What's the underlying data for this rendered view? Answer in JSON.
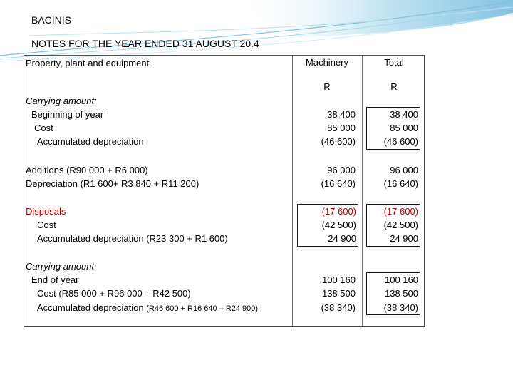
{
  "header": {
    "company": "BACINIS",
    "title": "NOTES FOR THE YEAR ENDED 31 AUGUST 20.4"
  },
  "table": {
    "section_title": "Property, plant and equipment",
    "col_machinery": "Machinery",
    "col_total": "Total",
    "unit_machinery": "R",
    "unit_total": "R",
    "carrying_label": "Carrying amount:",
    "beginning_label": "Beginning of year",
    "cost_label": "Cost",
    "acc_dep_label": "Accumulated depreciation",
    "begin_values": [
      "38 400",
      "85 000",
      "(46 600)"
    ],
    "additions_label": "Additions (R90 000 + R6 000)",
    "depreciation_label": "Depreciation (R1 600+ R3 840 + R11 200)",
    "add_dep_values": [
      "96 000",
      "(16 640)"
    ],
    "disposals_label": "Disposals",
    "disp_cost_label": "Cost",
    "disp_acc_dep_label": "Accumulated depreciation  (R23 300 + R1 600)",
    "disp_values": [
      "(17 600)",
      "(42 500)",
      "24 900"
    ],
    "carrying_end_label": "Carrying amount:",
    "end_label": "End of year",
    "end_cost_label": "Cost (R85 000 + R96 000 – R42 500)",
    "end_acc_dep_label": "Accumulated depreciation",
    "end_acc_dep_detail": "(R46 600 + R16 640 – R24 900)",
    "end_values": [
      "100 160",
      "138 500",
      "(38 340)"
    ]
  },
  "colors": {
    "red_text": "#c00000",
    "deco_blue": "#8ec9e6"
  }
}
